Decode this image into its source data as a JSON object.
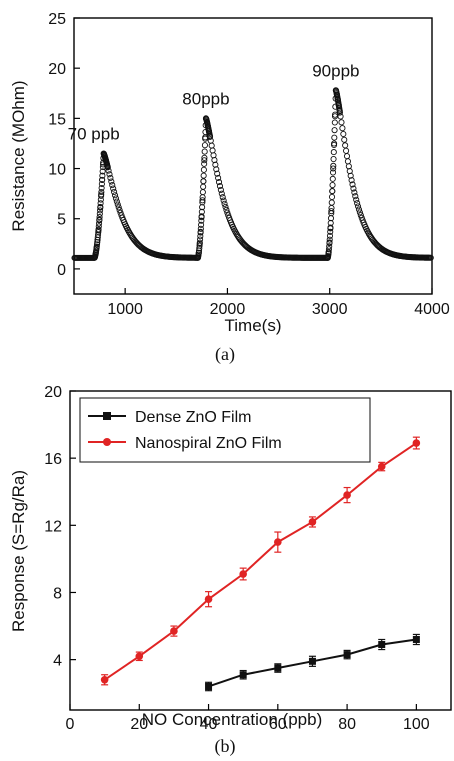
{
  "chart_data": [
    {
      "type": "scatter",
      "caption": "(a)",
      "xlabel": "Time(s)",
      "ylabel": "Resistance (MOhm)",
      "xlim": [
        500,
        4000
      ],
      "ylim": [
        -2.5,
        25
      ],
      "xticks": [
        "1000",
        "2000",
        "3000",
        "4000"
      ],
      "yticks": [
        "0",
        "5",
        "10",
        "15",
        "20",
        "25"
      ],
      "marker": "open-circle",
      "baseline": 1.1,
      "pulses": [
        {
          "label": "70 ppb",
          "onset": 700,
          "peak_time": 790,
          "peak": 11.5
        },
        {
          "label": "80ppb",
          "onset": 1710,
          "peak_time": 1790,
          "peak": 15.0
        },
        {
          "label": "90ppb",
          "onset": 2980,
          "peak_time": 3060,
          "peak": 17.8
        }
      ]
    },
    {
      "type": "line",
      "caption": "(b)",
      "xlabel": "NO Concentration (ppb)",
      "ylabel": "Response (S=Rg/Ra)",
      "xlim": [
        0,
        110
      ],
      "ylim": [
        1,
        20
      ],
      "xticks": [
        "0",
        "20",
        "40",
        "60",
        "80",
        "100"
      ],
      "yticks": [
        "4",
        "8",
        "12",
        "16",
        "20"
      ],
      "legend": "top-left",
      "series": [
        {
          "name": "Dense ZnO Film",
          "color": "#111111",
          "marker": "square",
          "x": [
            40,
            50,
            60,
            70,
            80,
            90,
            100
          ],
          "y": [
            2.4,
            3.1,
            3.5,
            3.9,
            4.3,
            4.9,
            5.2
          ],
          "err": [
            0.25,
            0.25,
            0.25,
            0.3,
            0.25,
            0.3,
            0.3
          ]
        },
        {
          "name": "Nanospiral ZnO Film",
          "color": "#e02424",
          "marker": "circle",
          "x": [
            10,
            20,
            30,
            40,
            50,
            60,
            70,
            80,
            90,
            100
          ],
          "y": [
            2.8,
            4.2,
            5.7,
            7.6,
            9.1,
            11.0,
            12.2,
            13.8,
            15.5,
            16.9
          ],
          "err": [
            0.3,
            0.25,
            0.3,
            0.45,
            0.35,
            0.6,
            0.3,
            0.45,
            0.25,
            0.35
          ]
        }
      ]
    }
  ]
}
